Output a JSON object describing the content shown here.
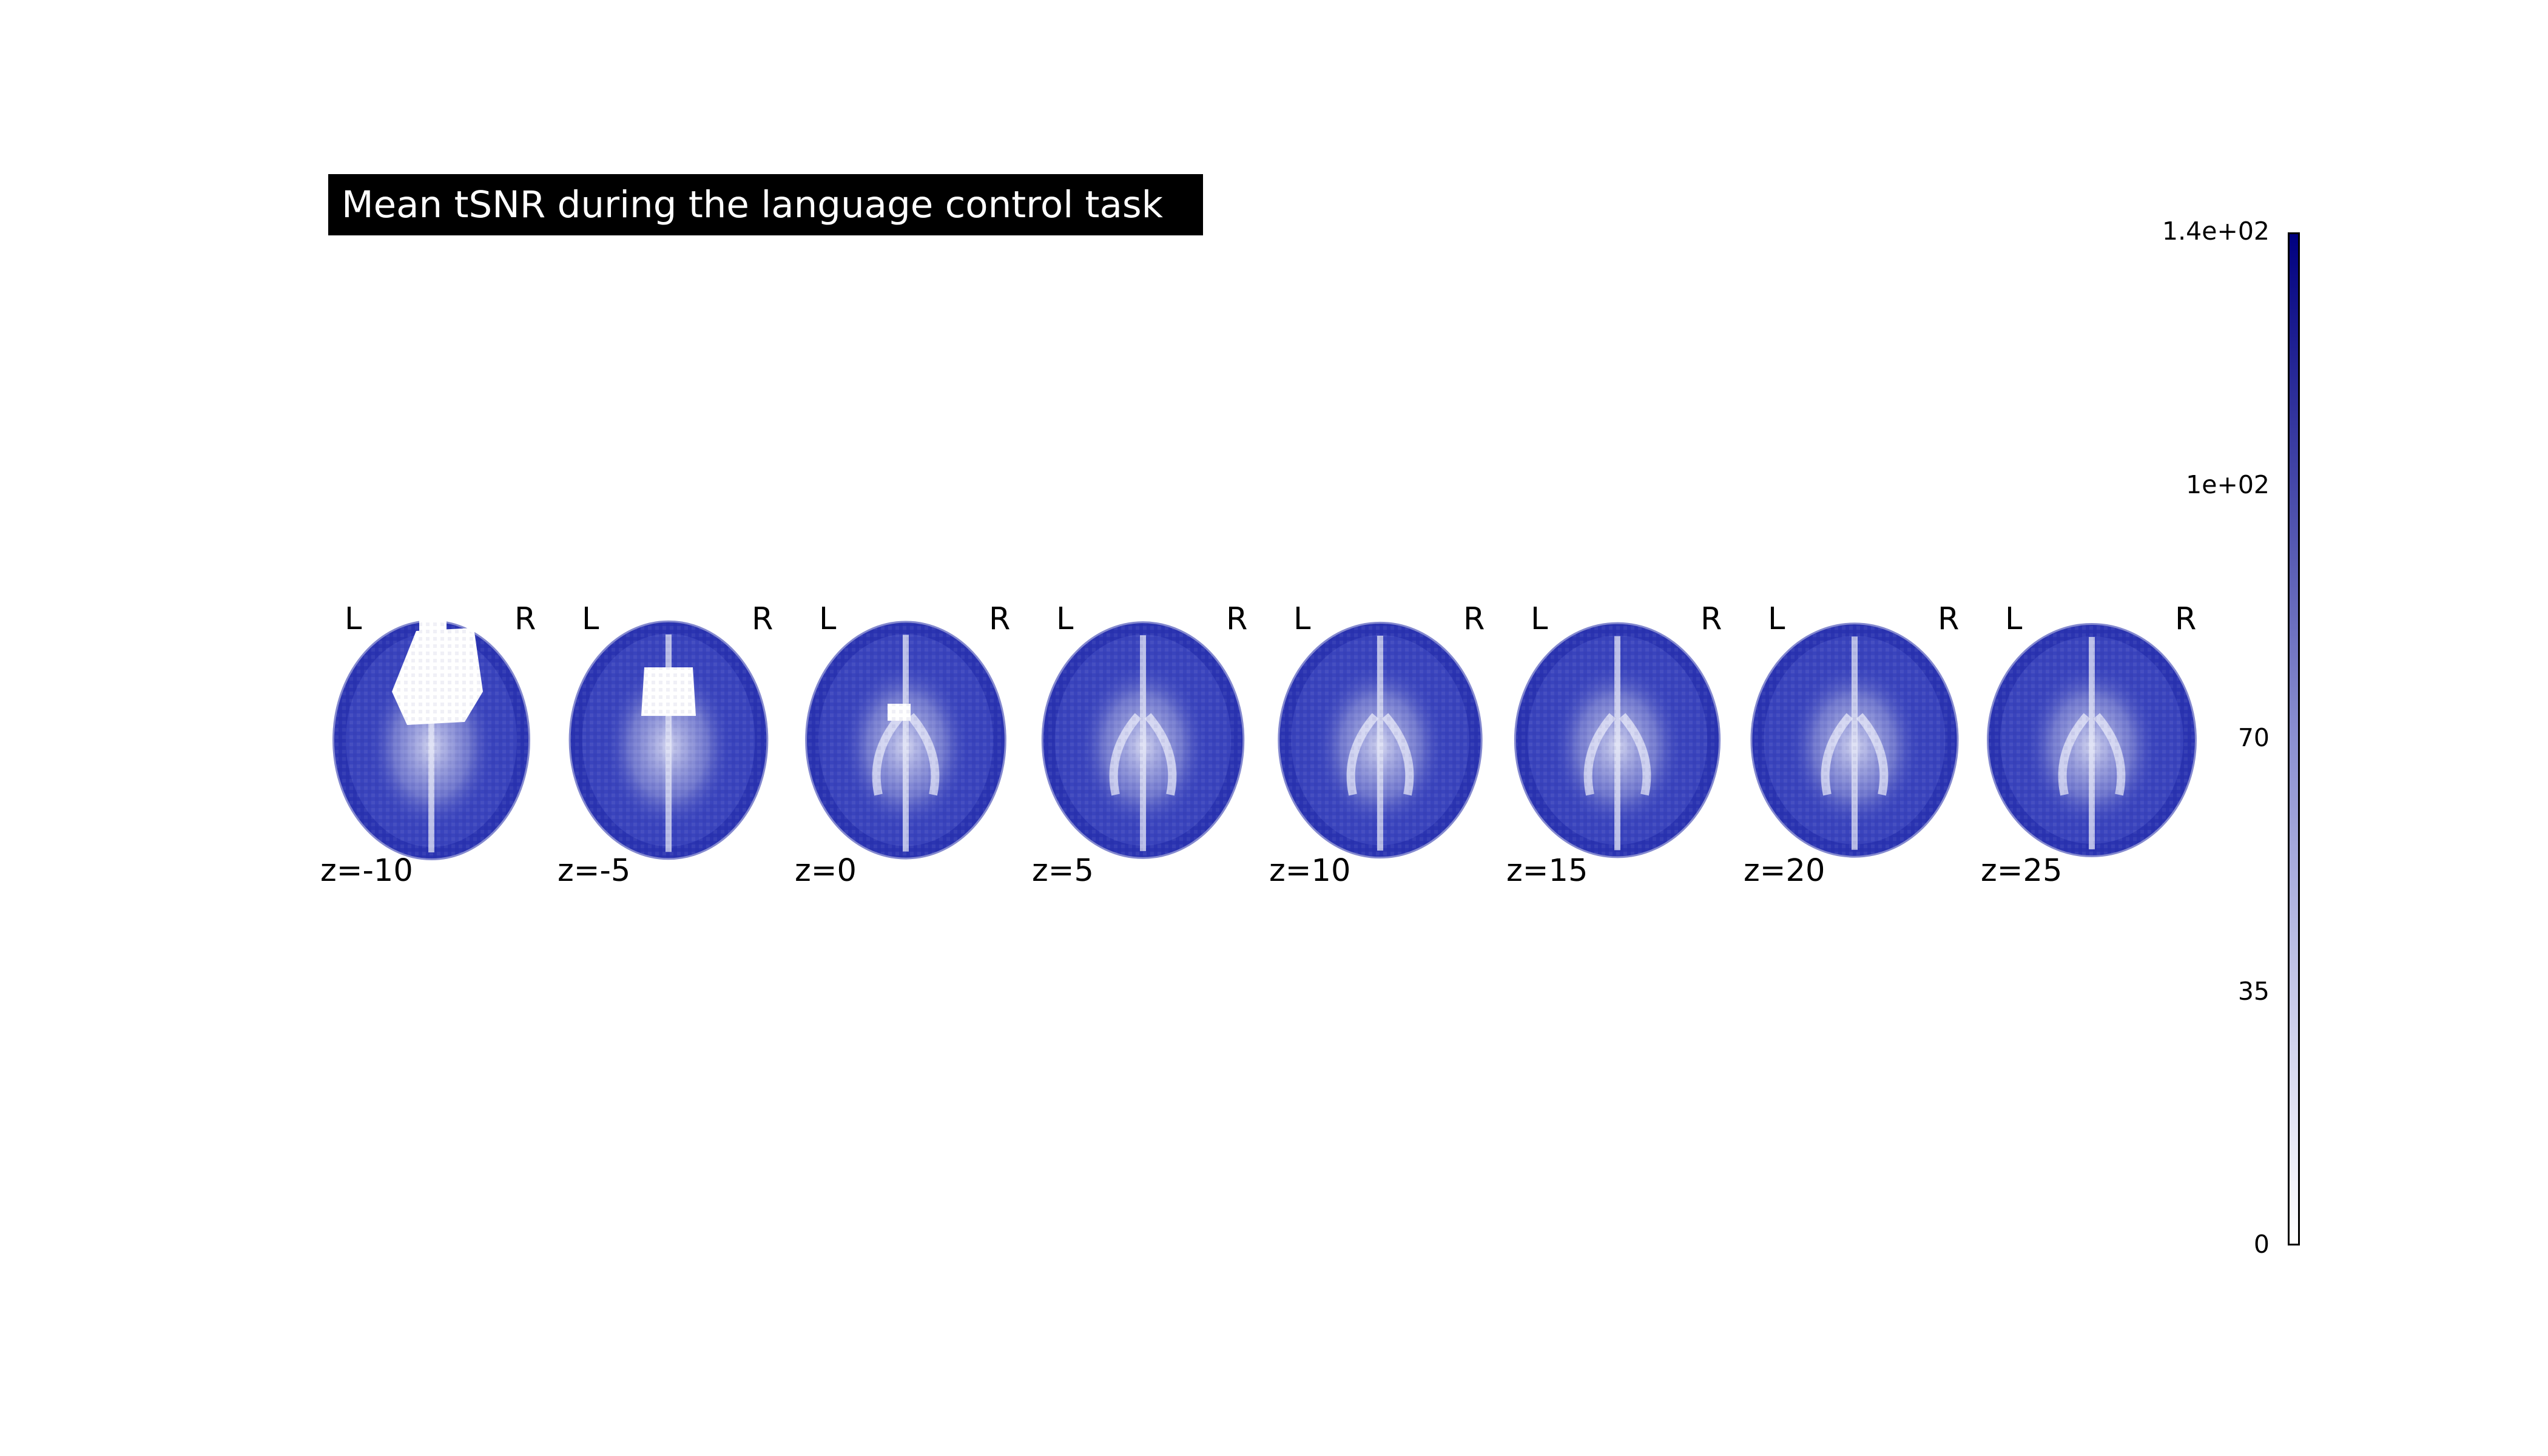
{
  "title": "Mean tSNR during the language control task",
  "colors": {
    "title_background": "#000000",
    "title_text": "#ffffff",
    "colormap_low": "#ffffff",
    "colormap_high": "#000080",
    "brain_base": "#3a44bd"
  },
  "display_mode": "z",
  "orientation_labels": {
    "left": "L",
    "right": "R"
  },
  "slices": [
    {
      "z": -10,
      "label": "z=-10"
    },
    {
      "z": -5,
      "label": "z=-5"
    },
    {
      "z": 0,
      "label": "z=0"
    },
    {
      "z": 5,
      "label": "z=5"
    },
    {
      "z": 10,
      "label": "z=10"
    },
    {
      "z": 15,
      "label": "z=15"
    },
    {
      "z": 20,
      "label": "z=20"
    },
    {
      "z": 25,
      "label": "z=25"
    }
  ],
  "colorbar": {
    "vmin": 0,
    "vmax": 140,
    "tick_labels": [
      "1.4e+02",
      "1e+02",
      "70",
      "35",
      "0"
    ]
  }
}
